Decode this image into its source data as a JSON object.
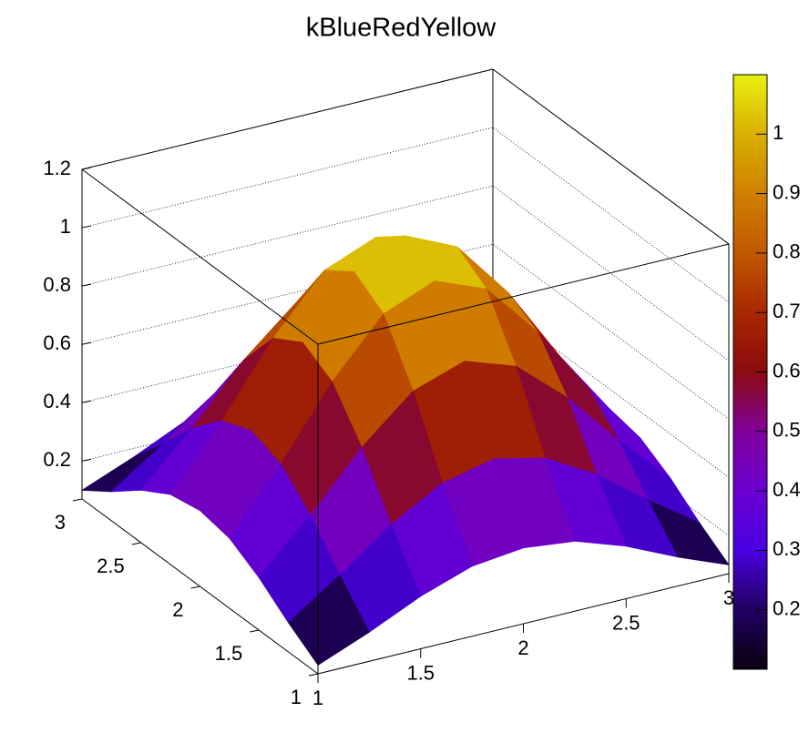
{
  "chart_data": {
    "type": "surface",
    "title": "kBlueRedYellow",
    "x": [
      1,
      1.25,
      1.5,
      1.75,
      2,
      2.25,
      2.5,
      2.75,
      3
    ],
    "y": [
      1,
      1.25,
      1.5,
      1.75,
      2,
      2.25,
      2.5,
      2.75,
      3
    ],
    "z": [
      [
        0.1,
        0.17,
        0.25,
        0.31,
        0.33,
        0.31,
        0.25,
        0.17,
        0.1
      ],
      [
        0.17,
        0.29,
        0.42,
        0.52,
        0.56,
        0.52,
        0.42,
        0.29,
        0.17
      ],
      [
        0.25,
        0.42,
        0.61,
        0.76,
        0.82,
        0.76,
        0.61,
        0.42,
        0.25
      ],
      [
        0.31,
        0.52,
        0.76,
        0.95,
        1.02,
        0.95,
        0.76,
        0.52,
        0.31
      ],
      [
        0.33,
        0.56,
        0.82,
        1.02,
        1.1,
        1.02,
        0.82,
        0.56,
        0.33
      ],
      [
        0.31,
        0.52,
        0.76,
        0.95,
        1.02,
        0.95,
        0.76,
        0.52,
        0.31
      ],
      [
        0.25,
        0.42,
        0.61,
        0.76,
        0.82,
        0.76,
        0.61,
        0.42,
        0.25
      ],
      [
        0.17,
        0.29,
        0.42,
        0.52,
        0.56,
        0.52,
        0.42,
        0.29,
        0.17
      ],
      [
        0.1,
        0.17,
        0.25,
        0.31,
        0.33,
        0.31,
        0.25,
        0.17,
        0.1
      ]
    ],
    "xlim": [
      1,
      3
    ],
    "xticks": [
      1,
      1.5,
      2,
      2.5,
      3
    ],
    "ylim": [
      1,
      3
    ],
    "yticks": [
      1,
      1.5,
      2,
      2.5,
      3
    ],
    "zlim": [
      0.07,
      1.2
    ],
    "zticks": [
      0.2,
      0.4,
      0.6,
      0.8,
      1,
      1.2
    ],
    "colorbar_lim": [
      0.1,
      1.1
    ],
    "colorbar_ticks": [
      0.2,
      0.3,
      0.4,
      0.5,
      0.6,
      0.7,
      0.8,
      0.9,
      1
    ],
    "palette": [
      "#0a0010",
      "#200060",
      "#4a00e0",
      "#6a00d0",
      "#80009a",
      "#8a0a10",
      "#a82800",
      "#c05800",
      "#d08000",
      "#d8b000",
      "#e8f010"
    ],
    "grid": true
  }
}
